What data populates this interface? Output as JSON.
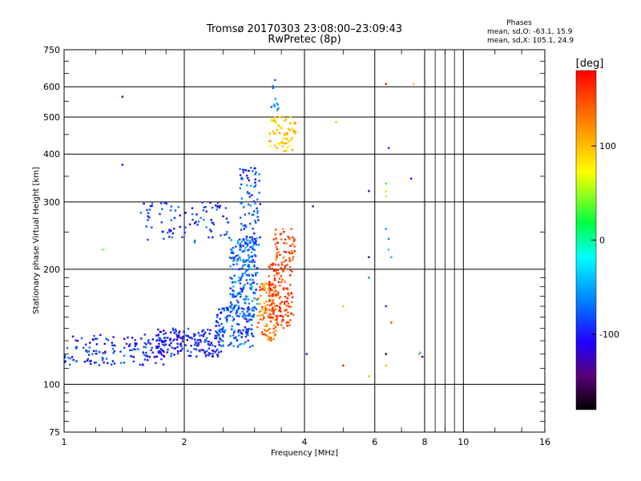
{
  "chart_data": {
    "type": "scatter",
    "title": "Tromsø 20170303 23:08:00–23:09:43",
    "subtitle": "RwPretec (8p)",
    "xlabel": "Frequency [MHz]",
    "ylabel": "Stationary phase Virtual Height [km]",
    "x_scale": "log",
    "y_scale": "log",
    "xlim": [
      1,
      16
    ],
    "ylim": [
      75,
      750
    ],
    "x_ticks": [
      1,
      2,
      4,
      6,
      8,
      10,
      16
    ],
    "y_ticks": [
      75,
      100,
      200,
      300,
      400,
      500,
      600,
      750
    ],
    "grid": true,
    "phase_box": {
      "heading": "Phases",
      "line_o": "mean, sd,O: -63.1, 15.9",
      "line_x": "mean, sd,X: 105.1, 24.9"
    },
    "colorbar": {
      "label": "[deg]",
      "range": [
        -180,
        180
      ],
      "ticks": [
        100,
        0,
        -100
      ]
    },
    "clusters": [
      {
        "f": [
          1.0,
          1.8
        ],
        "h": [
          112,
          135
        ],
        "phase": [
          -125,
          -60
        ],
        "count": 150
      },
      {
        "f": [
          1.7,
          2.5
        ],
        "h": [
          118,
          140
        ],
        "phase": [
          -130,
          -70
        ],
        "count": 180
      },
      {
        "f": [
          2.4,
          3.0
        ],
        "h": [
          125,
          160
        ],
        "phase": [
          -110,
          -50
        ],
        "count": 120
      },
      {
        "f": [
          2.6,
          3.05
        ],
        "h": [
          150,
          240
        ],
        "phase": [
          -100,
          -40
        ],
        "count": 220
      },
      {
        "f": [
          2.75,
          3.1
        ],
        "h": [
          230,
          370
        ],
        "phase": [
          -120,
          -50
        ],
        "count": 90
      },
      {
        "f": [
          1.55,
          2.6
        ],
        "h": [
          235,
          300
        ],
        "phase": [
          -120,
          -60
        ],
        "count": 90
      },
      {
        "f": [
          3.05,
          3.4
        ],
        "h": [
          130,
          185
        ],
        "phase": [
          100,
          160
        ],
        "count": 110
      },
      {
        "f": [
          3.25,
          3.75
        ],
        "h": [
          140,
          210
        ],
        "phase": [
          130,
          175
        ],
        "count": 140
      },
      {
        "f": [
          3.35,
          3.8
        ],
        "h": [
          210,
          255
        ],
        "phase": [
          120,
          175
        ],
        "count": 50
      },
      {
        "f": [
          3.25,
          3.8
        ],
        "h": [
          405,
          500
        ],
        "phase": [
          70,
          120
        ],
        "count": 70
      },
      {
        "f": [
          3.3,
          3.45
        ],
        "h": [
          520,
          650
        ],
        "phase": [
          -100,
          -40
        ],
        "count": 12
      }
    ],
    "isolated_points": [
      {
        "f": 1.4,
        "h": 565,
        "phase": -140
      },
      {
        "f": 1.4,
        "h": 375,
        "phase": -110
      },
      {
        "f": 1.25,
        "h": 225,
        "phase": 40
      },
      {
        "f": 4.2,
        "h": 292,
        "phase": -140
      },
      {
        "f": 4.05,
        "h": 120,
        "phase": -120
      },
      {
        "f": 5.0,
        "h": 112,
        "phase": 170
      },
      {
        "f": 5.0,
        "h": 160,
        "phase": 100
      },
      {
        "f": 4.8,
        "h": 485,
        "phase": 100
      },
      {
        "f": 5.8,
        "h": 320,
        "phase": -110
      },
      {
        "f": 5.8,
        "h": 215,
        "phase": -150
      },
      {
        "f": 5.8,
        "h": 190,
        "phase": -60
      },
      {
        "f": 5.8,
        "h": 105,
        "phase": 100
      },
      {
        "f": 6.4,
        "h": 610,
        "phase": 170
      },
      {
        "f": 6.5,
        "h": 415,
        "phase": -90
      },
      {
        "f": 6.4,
        "h": 335,
        "phase": 30
      },
      {
        "f": 6.4,
        "h": 320,
        "phase": 60
      },
      {
        "f": 6.4,
        "h": 310,
        "phase": 60
      },
      {
        "f": 6.4,
        "h": 255,
        "phase": -50
      },
      {
        "f": 6.5,
        "h": 240,
        "phase": -60
      },
      {
        "f": 6.5,
        "h": 225,
        "phase": -30
      },
      {
        "f": 6.6,
        "h": 215,
        "phase": -40
      },
      {
        "f": 6.4,
        "h": 160,
        "phase": -90
      },
      {
        "f": 6.6,
        "h": 145,
        "phase": 150
      },
      {
        "f": 6.4,
        "h": 120,
        "phase": -160
      },
      {
        "f": 6.4,
        "h": 112,
        "phase": 100
      },
      {
        "f": 7.5,
        "h": 610,
        "phase": 100
      },
      {
        "f": 7.4,
        "h": 345,
        "phase": -110
      },
      {
        "f": 7.75,
        "h": 120,
        "phase": 110
      },
      {
        "f": 7.9,
        "h": 118,
        "phase": -150
      },
      {
        "f": 7.8,
        "h": 121,
        "phase": -40
      }
    ]
  }
}
